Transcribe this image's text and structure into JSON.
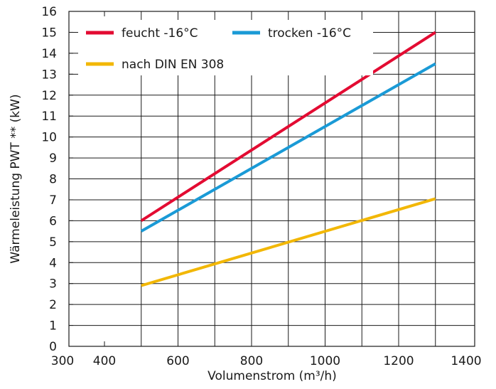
{
  "chart_data": {
    "type": "line",
    "title": "",
    "xlabel": "Volumenstrom (m³/h)",
    "ylabel": "Wärmeleistung PWT ** (kW)",
    "xlim": [
      300,
      1400
    ],
    "ylim": [
      0,
      16
    ],
    "x_ticks": [
      300,
      400,
      600,
      800,
      1000,
      1200,
      1400
    ],
    "y_ticks": [
      0,
      1,
      2,
      3,
      4,
      5,
      6,
      7,
      8,
      9,
      10,
      11,
      12,
      13,
      14,
      15,
      16
    ],
    "grid": true,
    "legend_position": "top-left",
    "series": [
      {
        "name": "feucht -16°C",
        "color": "#e30b32",
        "x": [
          500,
          1300
        ],
        "y": [
          6.0,
          15.0
        ]
      },
      {
        "name": "trocken -16°C",
        "color": "#1a9ad6",
        "x": [
          500,
          1300
        ],
        "y": [
          5.5,
          13.5
        ]
      },
      {
        "name": "nach DIN EN 308",
        "color": "#f2b705",
        "x": [
          500,
          1300
        ],
        "y": [
          2.9,
          7.05
        ]
      }
    ]
  }
}
